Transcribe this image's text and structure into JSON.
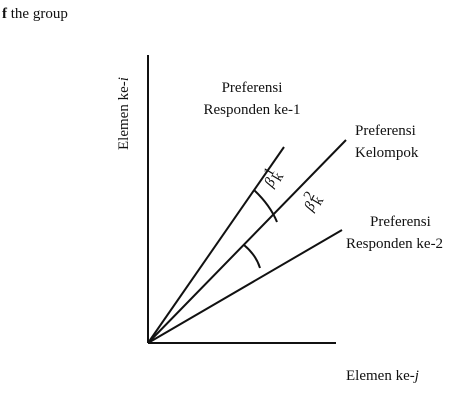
{
  "header": {
    "prefix": "f",
    "text": " the group"
  },
  "axes": {
    "y": {
      "text": "Elemen ke-",
      "var": "i"
    },
    "x": {
      "text": "Elemen ke-",
      "var": "j"
    }
  },
  "lines": [
    {
      "label": [
        "Preferensi",
        "Responden ke-1"
      ]
    },
    {
      "label": [
        "Preferensi",
        "Kelompok"
      ]
    },
    {
      "label": [
        "Preferensi",
        "Responden ke-2"
      ]
    }
  ],
  "angles": [
    {
      "symbol": "β",
      "sup": "1",
      "sub": "k"
    },
    {
      "symbol": "β",
      "sup": "2",
      "sub": "k"
    }
  ]
}
